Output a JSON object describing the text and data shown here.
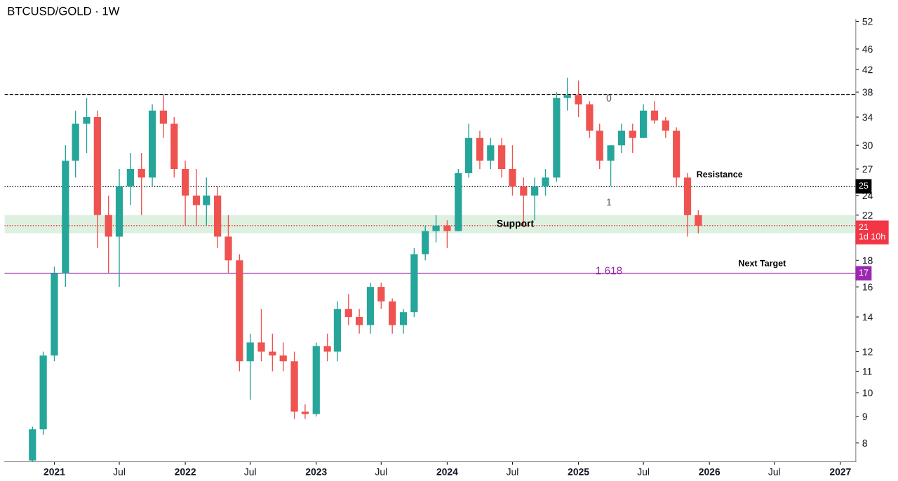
{
  "chart_data": {
    "type": "candlestick",
    "title": "BTCUSD/GOLD · 1W",
    "x": [
      "2020-11",
      "2020-12",
      "2021-01",
      "2021-02",
      "2021-03",
      "2021-04",
      "2021-05",
      "2021-06",
      "2021-07",
      "2021-08",
      "2021-09",
      "2021-10",
      "2021-11",
      "2021-12",
      "2022-01",
      "2022-02",
      "2022-03",
      "2022-04",
      "2022-05",
      "2022-06",
      "2022-07",
      "2022-08",
      "2022-09",
      "2022-10",
      "2022-11",
      "2022-12",
      "2023-01",
      "2023-02",
      "2023-03",
      "2023-04",
      "2023-05",
      "2023-06",
      "2023-07",
      "2023-08",
      "2023-09",
      "2023-10",
      "2023-11",
      "2023-12",
      "2024-01",
      "2024-02",
      "2024-03",
      "2024-04",
      "2024-05",
      "2024-06",
      "2024-07",
      "2024-08",
      "2024-09",
      "2024-10",
      "2024-11",
      "2024-12",
      "2025-01",
      "2025-02",
      "2025-03",
      "2025-04",
      "2025-05",
      "2025-06",
      "2025-07",
      "2025-08",
      "2025-09",
      "2025-10",
      "2025-11",
      "2025-12"
    ],
    "ohlc": [
      [
        7.4,
        8.6,
        7.3,
        8.5
      ],
      [
        8.5,
        12,
        8.3,
        11.8
      ],
      [
        11.8,
        17.5,
        11.5,
        17
      ],
      [
        17,
        30,
        16,
        28
      ],
      [
        28,
        35,
        26,
        33
      ],
      [
        33,
        37,
        29,
        34
      ],
      [
        34,
        35,
        19,
        22
      ],
      [
        22,
        24,
        17,
        20
      ],
      [
        20,
        27,
        16,
        25
      ],
      [
        25,
        29,
        23,
        27
      ],
      [
        27,
        29,
        22,
        26
      ],
      [
        26,
        36,
        25,
        35
      ],
      [
        35,
        37.6,
        31,
        33
      ],
      [
        33,
        34,
        26,
        27
      ],
      [
        27,
        28,
        21,
        24
      ],
      [
        24,
        27,
        21,
        23
      ],
      [
        23,
        26,
        21,
        24
      ],
      [
        24,
        25,
        19,
        20
      ],
      [
        20,
        22,
        17,
        18
      ],
      [
        18,
        18.5,
        11,
        11.5
      ],
      [
        11.5,
        13,
        9.7,
        12.5
      ],
      [
        12.5,
        14.5,
        11.5,
        12
      ],
      [
        12,
        13,
        11,
        11.8
      ],
      [
        11.8,
        12.5,
        11,
        11.5
      ],
      [
        11.5,
        12,
        8.9,
        9.2
      ],
      [
        9.2,
        9.5,
        8.9,
        9.1
      ],
      [
        9.1,
        12.5,
        9,
        12.3
      ],
      [
        12.3,
        13,
        11.5,
        12
      ],
      [
        12,
        15,
        11.5,
        14.5
      ],
      [
        14.5,
        15.5,
        13.5,
        14
      ],
      [
        14,
        14.5,
        13,
        13.5
      ],
      [
        13.5,
        16.3,
        13,
        16
      ],
      [
        16,
        16.3,
        14.5,
        15
      ],
      [
        15,
        15.2,
        13,
        13.5
      ],
      [
        13.5,
        14.5,
        13,
        14.3
      ],
      [
        14.3,
        19,
        14,
        18.5
      ],
      [
        18.5,
        21,
        18,
        20.5
      ],
      [
        20.5,
        22,
        19.5,
        21
      ],
      [
        21,
        21.5,
        19,
        20.5
      ],
      [
        20.5,
        27,
        20.5,
        26.5
      ],
      [
        26.5,
        33,
        26,
        31
      ],
      [
        31,
        32,
        27,
        28
      ],
      [
        28,
        31,
        27,
        30
      ],
      [
        30,
        31,
        26,
        27
      ],
      [
        27,
        30,
        24,
        25
      ],
      [
        25,
        26,
        21,
        24
      ],
      [
        24,
        26,
        21.5,
        25
      ],
      [
        25,
        27,
        24,
        26
      ],
      [
        26,
        38,
        25.5,
        37
      ],
      [
        37,
        40.5,
        35,
        37.5
      ],
      [
        37.5,
        40,
        34,
        36
      ],
      [
        36,
        36.5,
        31,
        32
      ],
      [
        32,
        33,
        27,
        28
      ],
      [
        28,
        30,
        25,
        30
      ],
      [
        30,
        33,
        29,
        32
      ],
      [
        32,
        33,
        29,
        31
      ],
      [
        31,
        36,
        31,
        35
      ],
      [
        35,
        36.5,
        33,
        33.5
      ],
      [
        33.5,
        34,
        31,
        32
      ],
      [
        32,
        32.5,
        25,
        26
      ],
      [
        26,
        26.5,
        20,
        22
      ],
      [
        22,
        22.5,
        20.3,
        21
      ]
    ],
    "colors": [
      "#26a69a",
      "#26a69a",
      "#26a69a",
      "#26a69a",
      "#26a69a",
      "#26a69a",
      "#ef5350",
      "#ef5350",
      "#26a69a",
      "#26a69a",
      "#ef5350",
      "#26a69a",
      "#ef5350",
      "#ef5350",
      "#ef5350",
      "#ef5350",
      "#26a69a",
      "#ef5350",
      "#ef5350",
      "#ef5350",
      "#26a69a",
      "#ef5350",
      "#ef5350",
      "#ef5350",
      "#ef5350",
      "#ef5350",
      "#26a69a",
      "#ef5350",
      "#26a69a",
      "#ef5350",
      "#ef5350",
      "#26a69a",
      "#ef5350",
      "#ef5350",
      "#26a69a",
      "#26a69a",
      "#26a69a",
      "#26a69a",
      "#ef5350",
      "#26a69a",
      "#26a69a",
      "#ef5350",
      "#26a69a",
      "#ef5350",
      "#ef5350",
      "#ef5350",
      "#26a69a",
      "#26a69a",
      "#26a69a",
      "#26a69a",
      "#ef5350",
      "#ef5350",
      "#ef5350",
      "#26a69a",
      "#26a69a",
      "#ef5350",
      "#26a69a",
      "#ef5350",
      "#ef5350",
      "#ef5350",
      "#ef5350",
      "#ef5350"
    ],
    "log": true,
    "xlim": [
      "2020-08-15",
      "2027-02-13"
    ],
    "ylim": [
      7.36,
      52.5
    ],
    "xticks": [
      {
        "value": "2021-01-01",
        "label": "2021"
      },
      {
        "value": "2021-07-01",
        "label": "Jul"
      },
      {
        "value": "2022-01-01",
        "label": "2022"
      },
      {
        "value": "2022-07-01",
        "label": "Jul"
      },
      {
        "value": "2023-01-01",
        "label": "2023"
      },
      {
        "value": "2023-07-01",
        "label": "Jul"
      },
      {
        "value": "2024-01-01",
        "label": "2024"
      },
      {
        "value": "2024-07-01",
        "label": "Jul"
      },
      {
        "value": "2025-01-01",
        "label": "2025"
      },
      {
        "value": "2025-07-01",
        "label": "Jul"
      },
      {
        "value": "2026-01-01",
        "label": "2026"
      },
      {
        "value": "2026-07-01",
        "label": "Jul"
      },
      {
        "value": "2027-01-01",
        "label": "2027"
      }
    ],
    "yticks": [
      8,
      9,
      10,
      11,
      12,
      14,
      16,
      18,
      22,
      24,
      27,
      30,
      34,
      38,
      42,
      46,
      52
    ],
    "grid": false,
    "ref_lines": [
      {
        "axis": "y",
        "value": 37.6,
        "color": "#000000",
        "line_style": "dashed"
      },
      {
        "axis": "y",
        "value": 25,
        "label": "25",
        "color": "#000000",
        "line_style": "dotted"
      },
      {
        "axis": "y",
        "value": 21,
        "label": "21\n1d 10h",
        "color": "#f23645",
        "line_style": "dotted"
      },
      {
        "axis": "y",
        "value": 17,
        "label": "17",
        "color": "#9c27b0",
        "line_style": "solid"
      }
    ],
    "bands": [
      {
        "axis": "y",
        "from": 20.3,
        "to": 22,
        "label": "Support",
        "color": "#c8e6c9"
      }
    ],
    "annotations": [
      "0",
      "1",
      "1.618",
      "Resistance",
      "Next Target"
    ]
  }
}
